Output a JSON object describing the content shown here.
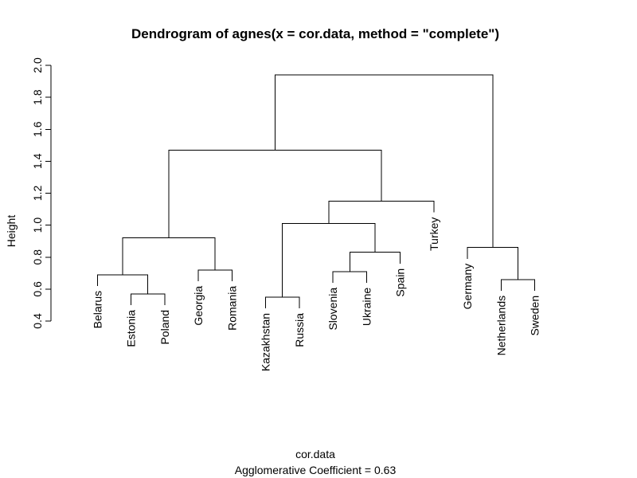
{
  "chart_data": {
    "type": "dendrogram",
    "title": "Dendrogram of  agnes(x = cor.data, method = \"complete\")",
    "xlabel": "cor.data",
    "ylabel": "Height",
    "subtitle": "Agglomerative Coefficient =  0.63",
    "ylim": [
      0.4,
      2.0
    ],
    "yticks": [
      "0.4",
      "0.6",
      "0.8",
      "1.0",
      "1.2",
      "1.4",
      "1.6",
      "1.8",
      "2.0"
    ],
    "leaves": [
      "Belarus",
      "Estonia",
      "Poland",
      "Georgia",
      "Romania",
      "Kazakhstan",
      "Russia",
      "Slovenia",
      "Ukraine",
      "Spain",
      "Turkey",
      "Germany",
      "Netherlands",
      "Sweden"
    ],
    "merges": [
      {
        "id": "EP",
        "left": "Estonia",
        "right": "Poland",
        "height": 0.57
      },
      {
        "id": "BEP",
        "left": "Belarus",
        "right": "EP",
        "height": 0.69
      },
      {
        "id": "GR",
        "left": "Georgia",
        "right": "Romania",
        "height": 0.72
      },
      {
        "id": "BEPGR",
        "left": "BEP",
        "right": "GR",
        "height": 0.92
      },
      {
        "id": "KR",
        "left": "Kazakhstan",
        "right": "Russia",
        "height": 0.55
      },
      {
        "id": "SU",
        "left": "Slovenia",
        "right": "Ukraine",
        "height": 0.71
      },
      {
        "id": "SUS",
        "left": "SU",
        "right": "Spain",
        "height": 0.83
      },
      {
        "id": "KRSUS",
        "left": "KR",
        "right": "SUS",
        "height": 1.01
      },
      {
        "id": "KRSUST",
        "left": "KRSUS",
        "right": "Turkey",
        "height": 1.15
      },
      {
        "id": "EAST",
        "left": "BEPGR",
        "right": "KRSUST",
        "height": 1.47
      },
      {
        "id": "NS",
        "left": "Netherlands",
        "right": "Sweden",
        "height": 0.66
      },
      {
        "id": "GNS",
        "left": "Germany",
        "right": "NS",
        "height": 0.86
      },
      {
        "id": "ALL",
        "left": "EAST",
        "right": "GNS",
        "height": 1.94
      }
    ],
    "leaf_label_heights": {
      "Belarus": 0.62,
      "Estonia": 0.5,
      "Poland": 0.5,
      "Georgia": 0.65,
      "Romania": 0.65,
      "Kazakhstan": 0.48,
      "Russia": 0.48,
      "Slovenia": 0.64,
      "Ukraine": 0.64,
      "Spain": 0.76,
      "Turkey": 1.08,
      "Germany": 0.79,
      "Netherlands": 0.59,
      "Sweden": 0.59
    }
  }
}
